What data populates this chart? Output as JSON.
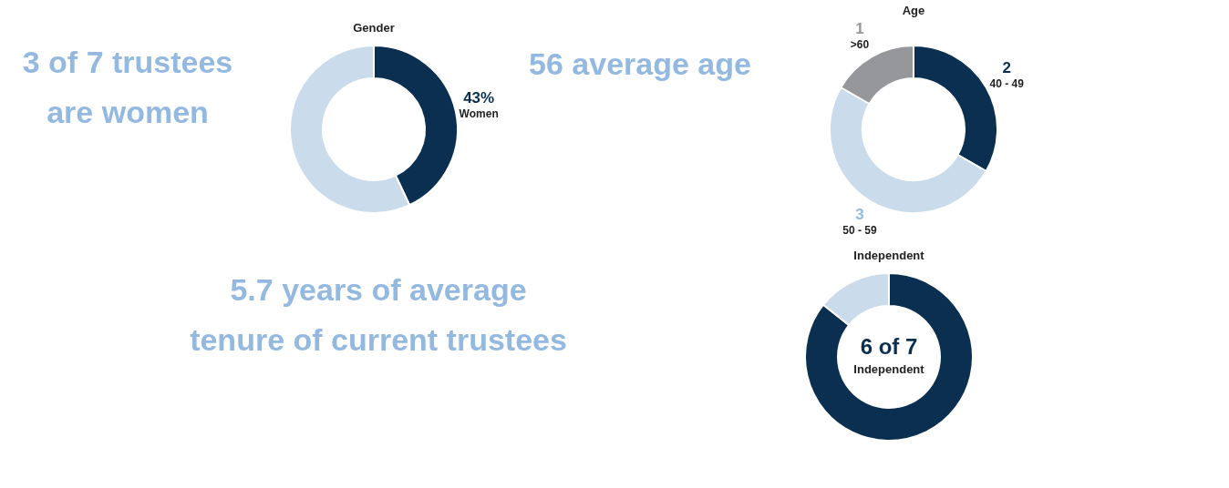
{
  "chart_data": [
    {
      "type": "other",
      "annotations": [
        "3 of 7 trustees",
        "are women"
      ],
      "color": "#94b9e0"
    },
    {
      "type": "donut",
      "title": "Gender",
      "categories": [
        "Women",
        null
      ],
      "values": [
        43,
        57
      ],
      "colors": [
        "#0b2f50",
        "#cadcec"
      ],
      "value_labels": [
        "43%",
        null
      ]
    },
    {
      "type": "other",
      "annotations": [
        "56 average age"
      ],
      "color": "#94b9e0"
    },
    {
      "type": "donut",
      "title": "Age",
      "categories": [
        "40 - 49",
        "50 - 59",
        ">60"
      ],
      "values": [
        2,
        3,
        1
      ],
      "colors": [
        "#0b2f50",
        "#cadcec",
        "#96979b"
      ],
      "data_labels": true
    },
    {
      "type": "other",
      "annotations": [
        "5.7 years of average",
        "tenure of current trustees"
      ],
      "color": "#94b9e0"
    },
    {
      "type": "donut",
      "title": "Independent",
      "categories": [
        null,
        null
      ],
      "values": [
        85.7,
        14.3
      ],
      "colors": [
        "#0b2f50",
        "#cadcec"
      ],
      "annotations": [
        "6 of 7",
        "Independent"
      ]
    }
  ]
}
